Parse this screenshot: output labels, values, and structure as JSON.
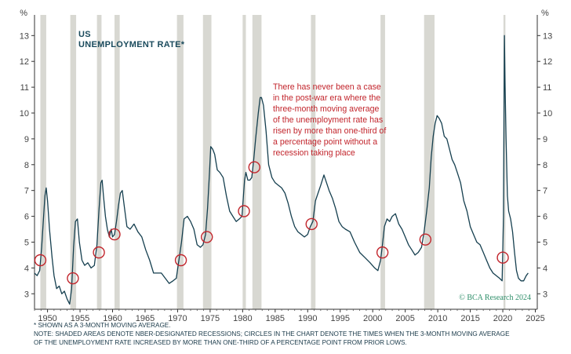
{
  "chart_data": {
    "type": "line",
    "title_line1": "US",
    "title_line2": "UNEMPLOYMENT RATE*",
    "ylabel_left": "%",
    "ylabel_right": "%",
    "ylim": [
      2.4,
      13.8
    ],
    "xlim": [
      1948.0,
      2025.3
    ],
    "yticks": [
      3,
      4,
      5,
      6,
      7,
      8,
      9,
      10,
      11,
      12,
      13
    ],
    "xticks": [
      1950,
      1955,
      1960,
      1965,
      1970,
      1975,
      1980,
      1985,
      1990,
      1995,
      2000,
      2005,
      2010,
      2015,
      2020,
      2025
    ],
    "grid": false,
    "legend": "none",
    "annotation": [
      "There has never been a case",
      "in the post-war era where the",
      "three-month moving average",
      "of the unemployment rate has",
      "risen by more than one-third of",
      "a percentage point without a",
      "recession taking place"
    ],
    "watermark": "© BCA Research 2024",
    "footnote_1": "* SHOWN AS A 3-MONTH MOVING AVERAGE.",
    "footnote_2": "NOTE: SHADED AREAS DENOTE NBER-DESIGNATED RECESSIONS; CIRCLES IN THE CHART DENOTE THE TIMES WHEN THE 3-MONTH MOVING AVERAGE",
    "footnote_3": "OF THE UNEMPLOYMENT RATE INCREASED BY MORE THAN ONE-THIRD OF A PERCENTAGE POINT FROM PRIOR LOWS.",
    "recessions": [
      [
        1948.9,
        1949.8
      ],
      [
        1953.5,
        1954.4
      ],
      [
        1957.6,
        1958.3
      ],
      [
        1960.3,
        1961.1
      ],
      [
        1969.9,
        1970.9
      ],
      [
        1973.9,
        1975.2
      ],
      [
        1980.0,
        1980.5
      ],
      [
        1981.5,
        1982.9
      ],
      [
        1990.5,
        1991.2
      ],
      [
        2001.2,
        2001.9
      ],
      [
        2007.9,
        2009.5
      ],
      [
        2020.1,
        2020.35
      ]
    ],
    "circles": [
      {
        "x": 1948.9,
        "y": 4.3
      },
      {
        "x": 1953.9,
        "y": 3.6
      },
      {
        "x": 1957.9,
        "y": 4.6
      },
      {
        "x": 1960.3,
        "y": 5.3
      },
      {
        "x": 1970.5,
        "y": 4.3
      },
      {
        "x": 1974.5,
        "y": 5.2
      },
      {
        "x": 1980.2,
        "y": 6.2
      },
      {
        "x": 1981.8,
        "y": 7.9
      },
      {
        "x": 1990.6,
        "y": 5.7
      },
      {
        "x": 2001.5,
        "y": 4.6
      },
      {
        "x": 2008.1,
        "y": 5.1
      },
      {
        "x": 2020.0,
        "y": 4.4
      }
    ],
    "series": [
      {
        "x": [
          1948.0,
          1948.4,
          1948.8,
          1949.1,
          1949.4,
          1949.6,
          1949.8,
          1950.0,
          1950.3,
          1950.7,
          1951.0,
          1951.4,
          1951.8,
          1952.2,
          1952.6,
          1953.0,
          1953.4,
          1953.7,
          1954.0,
          1954.3,
          1954.6,
          1954.9,
          1955.3,
          1955.7,
          1956.2,
          1956.7,
          1957.2,
          1957.6,
          1957.9,
          1958.2,
          1958.4,
          1958.6,
          1958.9,
          1959.2,
          1959.5,
          1959.8,
          1960.0,
          1960.3,
          1960.6,
          1960.9,
          1961.2,
          1961.5,
          1961.8,
          1962.2,
          1962.7,
          1963.3,
          1963.9,
          1964.5,
          1965.1,
          1965.7,
          1966.3,
          1966.9,
          1967.5,
          1968.1,
          1968.7,
          1969.3,
          1969.8,
          1970.2,
          1970.6,
          1971.0,
          1971.5,
          1972.0,
          1972.5,
          1973.0,
          1973.5,
          1973.9,
          1974.3,
          1974.6,
          1974.9,
          1975.1,
          1975.4,
          1975.7,
          1976.1,
          1976.5,
          1977.0,
          1977.5,
          1978.0,
          1978.5,
          1979.0,
          1979.5,
          1979.9,
          1980.3,
          1980.5,
          1980.8,
          1981.1,
          1981.4,
          1981.7,
          1982.0,
          1982.4,
          1982.7,
          1982.9,
          1983.2,
          1983.6,
          1984.0,
          1984.5,
          1985.0,
          1985.5,
          1986.0,
          1986.5,
          1987.0,
          1987.5,
          1988.0,
          1988.5,
          1989.0,
          1989.5,
          1990.0,
          1990.4,
          1990.8,
          1991.2,
          1991.6,
          1992.0,
          1992.5,
          1992.9,
          1993.3,
          1993.8,
          1994.3,
          1994.8,
          1995.3,
          1995.8,
          1996.5,
          1997.2,
          1998.0,
          1998.8,
          1999.6,
          2000.3,
          2000.8,
          2001.2,
          2001.5,
          2001.8,
          2002.2,
          2002.6,
          2003.0,
          2003.5,
          2004.0,
          2004.5,
          2005.0,
          2005.5,
          2006.0,
          2006.5,
          2007.0,
          2007.5,
          2007.9,
          2008.3,
          2008.7,
          2009.0,
          2009.3,
          2009.6,
          2009.9,
          2010.2,
          2010.6,
          2011.0,
          2011.4,
          2011.8,
          2012.2,
          2012.6,
          2013.0,
          2013.5,
          2014.0,
          2014.5,
          2015.0,
          2015.5,
          2016.0,
          2016.5,
          2017.0,
          2017.5,
          2018.0,
          2018.5,
          2019.0,
          2019.5,
          2019.9,
          2020.1,
          2020.25,
          2020.35,
          2020.5,
          2020.7,
          2020.9,
          2021.2,
          2021.5,
          2021.8,
          2022.1,
          2022.4,
          2022.8,
          2023.2,
          2023.6,
          2023.9
        ],
        "values": [
          3.8,
          3.7,
          3.9,
          4.8,
          6.0,
          6.8,
          7.1,
          6.6,
          5.5,
          4.4,
          3.7,
          3.2,
          3.3,
          3.0,
          3.1,
          2.8,
          2.6,
          3.2,
          4.8,
          5.8,
          5.9,
          5.0,
          4.3,
          4.1,
          4.2,
          4.0,
          4.1,
          4.9,
          6.2,
          7.3,
          7.4,
          6.8,
          6.0,
          5.5,
          5.2,
          5.5,
          5.2,
          5.3,
          5.8,
          6.4,
          6.9,
          7.0,
          6.4,
          5.6,
          5.5,
          5.7,
          5.4,
          5.2,
          4.7,
          4.3,
          3.8,
          3.8,
          3.8,
          3.6,
          3.4,
          3.5,
          3.6,
          4.3,
          5.0,
          5.9,
          6.0,
          5.8,
          5.5,
          4.9,
          4.8,
          4.9,
          5.3,
          6.3,
          7.7,
          8.7,
          8.6,
          8.4,
          7.8,
          7.7,
          7.5,
          6.8,
          6.2,
          6.0,
          5.8,
          5.9,
          6.0,
          7.4,
          7.7,
          7.4,
          7.4,
          7.5,
          8.2,
          9.0,
          10.0,
          10.6,
          10.6,
          10.3,
          9.3,
          8.0,
          7.5,
          7.3,
          7.2,
          7.1,
          6.9,
          6.5,
          6.0,
          5.6,
          5.4,
          5.3,
          5.2,
          5.3,
          5.6,
          5.8,
          6.6,
          6.9,
          7.2,
          7.6,
          7.3,
          7.0,
          6.7,
          6.3,
          5.8,
          5.6,
          5.5,
          5.4,
          5.0,
          4.6,
          4.4,
          4.2,
          4.0,
          3.9,
          4.3,
          4.9,
          5.6,
          5.9,
          5.8,
          6.0,
          6.1,
          5.7,
          5.5,
          5.2,
          4.9,
          4.7,
          4.5,
          4.6,
          4.8,
          5.4,
          6.2,
          7.1,
          8.3,
          9.1,
          9.6,
          9.9,
          9.8,
          9.6,
          9.1,
          9.0,
          8.6,
          8.2,
          8.0,
          7.7,
          7.3,
          6.6,
          6.2,
          5.6,
          5.3,
          5.0,
          4.9,
          4.6,
          4.3,
          4.0,
          3.8,
          3.7,
          3.6,
          3.5,
          6.0,
          13.0,
          11.0,
          9.0,
          6.8,
          6.2,
          5.9,
          5.4,
          4.6,
          3.9,
          3.6,
          3.5,
          3.5,
          3.7,
          3.8
        ]
      }
    ]
  }
}
